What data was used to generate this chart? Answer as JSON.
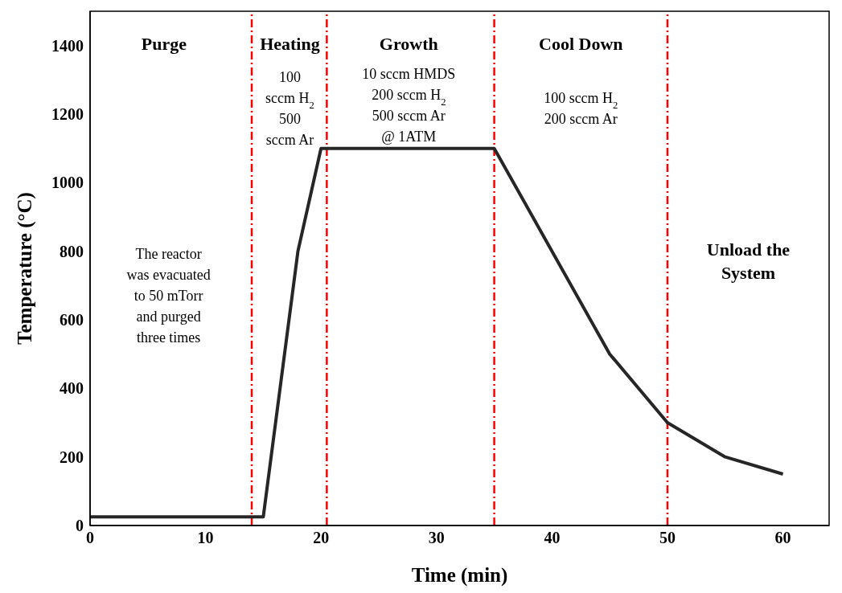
{
  "chart_data": {
    "type": "line",
    "xlabel": "Time (min)",
    "ylabel": "Temperature (°C)",
    "x": [
      0,
      15,
      18,
      20,
      35,
      45,
      50,
      55,
      60
    ],
    "series": [
      {
        "color": "#262626",
        "values": [
          25,
          25,
          800,
          1100,
          1100,
          500,
          300,
          200,
          150
        ]
      }
    ],
    "xlim": [
      0,
      64
    ],
    "xticks": [
      0,
      10,
      20,
      30,
      40,
      50,
      60
    ],
    "ylim": [
      0,
      1500
    ],
    "yticks": [
      0,
      200,
      400,
      600,
      800,
      1000,
      1200,
      1400
    ],
    "grid": false,
    "legend": false,
    "marker": "none",
    "line_style": "solid",
    "ref_lines": [
      {
        "axis": "x",
        "value": 14,
        "color": "#ff0000",
        "line_style": "dashed"
      },
      {
        "axis": "x",
        "value": 20.5,
        "color": "#ff0000",
        "line_style": "dashed"
      },
      {
        "axis": "x",
        "value": 35,
        "color": "#ff0000",
        "line_style": "dashed"
      },
      {
        "axis": "x",
        "value": 50,
        "color": "#ff0000",
        "line_style": "dashed"
      }
    ],
    "annotations": [
      "Purge",
      "Heating",
      "Growth",
      "Cool Down",
      "100\nsccm H$_{2}$\n500\nsccm Ar",
      "10 sccm HMDS\n200 sccm H$_{2}$\n500 sccm Ar\n@ 1ATM",
      "100 sccm H$_{2}$\n200 sccm Ar",
      "The reactor\nwas evacuated\nto 50 mTorr\nand purged\nthree times",
      "Unload the\nSystem"
    ]
  }
}
